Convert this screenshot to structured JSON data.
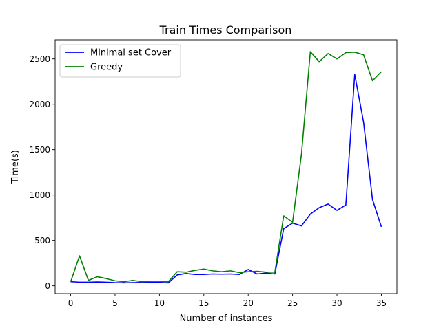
{
  "chart_data": {
    "type": "line",
    "title": "Train Times Comparison",
    "xlabel": "Number of instances",
    "ylabel": "Time(s)",
    "xlim": [
      -1.75,
      36.75
    ],
    "ylim": [
      -86,
      2710
    ],
    "xticks": [
      0,
      5,
      10,
      15,
      20,
      25,
      30,
      35
    ],
    "yticks": [
      0,
      500,
      1000,
      1500,
      2000,
      2500
    ],
    "grid": false,
    "legend_position": "upper left",
    "x": [
      0,
      1,
      2,
      3,
      4,
      5,
      6,
      7,
      8,
      9,
      10,
      11,
      12,
      13,
      14,
      15,
      16,
      17,
      18,
      19,
      20,
      21,
      22,
      23,
      24,
      25,
      26,
      27,
      28,
      29,
      30,
      31,
      32,
      33,
      34,
      35
    ],
    "series": [
      {
        "name": "Minimal set Cover",
        "color": "#0000ff",
        "values": [
          45,
          40,
          40,
          42,
          40,
          35,
          33,
          35,
          37,
          38,
          38,
          32,
          120,
          135,
          125,
          125,
          130,
          128,
          130,
          125,
          180,
          130,
          140,
          130,
          630,
          690,
          660,
          790,
          860,
          900,
          830,
          890,
          2330,
          1800,
          950,
          650
        ]
      },
      {
        "name": "Greedy",
        "color": "#008000",
        "values": [
          45,
          330,
          60,
          100,
          80,
          55,
          45,
          60,
          45,
          50,
          50,
          45,
          155,
          150,
          170,
          185,
          165,
          155,
          165,
          145,
          155,
          160,
          150,
          150,
          770,
          700,
          1450,
          2580,
          2470,
          2560,
          2500,
          2570,
          2575,
          2545,
          2260,
          2360
        ]
      }
    ]
  }
}
